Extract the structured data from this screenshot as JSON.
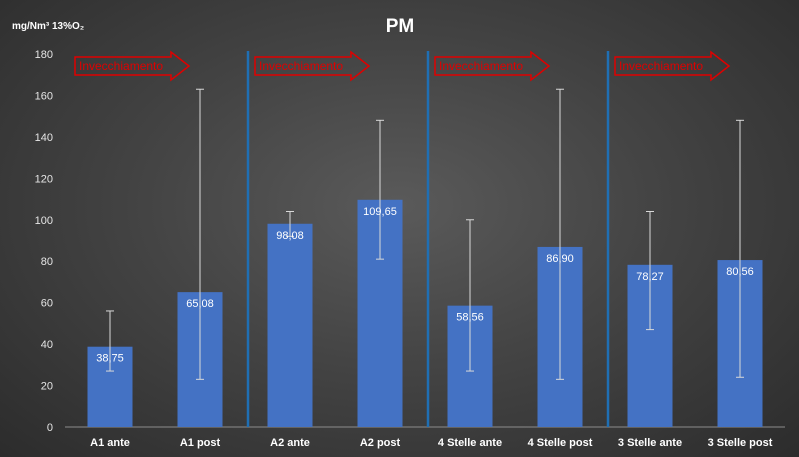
{
  "chart_data": {
    "type": "bar",
    "title": "PM",
    "ylabel": "mg/Nm³ 13%O₂",
    "ylim": [
      0,
      180
    ],
    "yticks": [
      0,
      20,
      40,
      60,
      80,
      100,
      120,
      140,
      160,
      180
    ],
    "grid": false,
    "categories": [
      "A1 ante",
      "A1 post",
      "A2 ante",
      "A2 post",
      "4 Stelle ante",
      "4 Stelle post",
      "3 Stelle ante",
      "3 Stelle post"
    ],
    "values": [
      38.75,
      65.08,
      98.08,
      109.65,
      58.56,
      86.9,
      78.27,
      80.56
    ],
    "value_labels": [
      "38,75",
      "65,08",
      "98,08",
      "109,65",
      "58,56",
      "86,90",
      "78,27",
      "80,56"
    ],
    "error_bars": [
      {
        "low": 27,
        "high": 56
      },
      {
        "low": 23,
        "high": 163
      },
      {
        "low": 92,
        "high": 104
      },
      {
        "low": 81,
        "high": 148
      },
      {
        "low": 27,
        "high": 100
      },
      {
        "low": 23,
        "high": 163
      },
      {
        "low": 47,
        "high": 104
      },
      {
        "low": 24,
        "high": 148
      }
    ],
    "group_separators_after": [
      1,
      3,
      5
    ],
    "annotations": [
      "Invecchiamento",
      "Invecchiamento",
      "Invecchiamento",
      "Invecchiamento"
    ],
    "colors": {
      "bar": "#4472c4",
      "separator": "#1f6fb4",
      "error_bar": "#d9d9d9",
      "annotation": "#e00000"
    }
  }
}
